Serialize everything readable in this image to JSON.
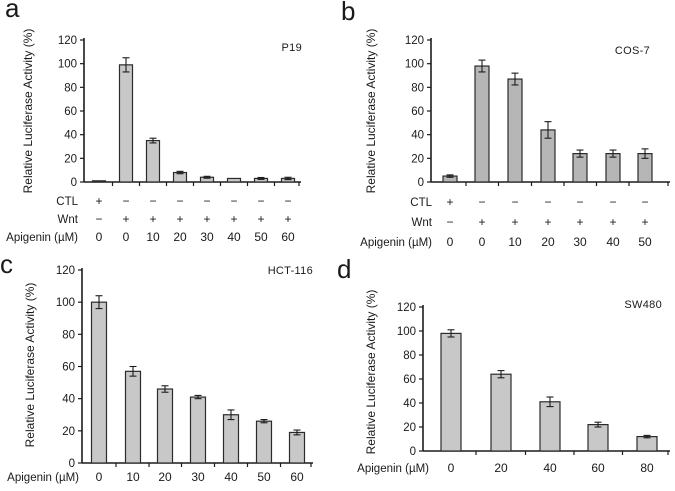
{
  "colors": {
    "bar_fill_light": "#c8c8c8",
    "bar_fill_medium": "#b6b6b6",
    "bar_border": "#2b2b2b",
    "axis": "#1c1c1c",
    "text": "#1a1a1a",
    "background": "#ffffff"
  },
  "chart_data": [
    {
      "type": "bar",
      "panel_letter": "a",
      "cell_line": "P19",
      "ylabel": "Relative Luciferase Activity (%)",
      "ylim": [
        0,
        120
      ],
      "yticks": [
        0,
        20,
        40,
        60,
        80,
        100,
        120
      ],
      "categories": [
        "0",
        "0",
        "10",
        "20",
        "30",
        "40",
        "50",
        "60"
      ],
      "values": [
        1,
        99,
        35,
        8,
        4,
        3,
        3,
        3
      ],
      "errors": [
        0.3,
        6,
        2,
        1,
        0.8,
        0.5,
        0.8,
        1
      ],
      "bar_fill": "#c8c8c8",
      "legend": "none",
      "grid": false,
      "condition_rows": [
        {
          "label": "CTL",
          "values": [
            "+",
            "−",
            "−",
            "−",
            "−",
            "−",
            "−",
            "−"
          ]
        },
        {
          "label": "Wnt",
          "values": [
            "−",
            "+",
            "+",
            "+",
            "+",
            "+",
            "+",
            "+"
          ]
        },
        {
          "label": "Apigenin (µM)",
          "values": [
            "0",
            "0",
            "10",
            "20",
            "30",
            "40",
            "50",
            "60"
          ]
        }
      ]
    },
    {
      "type": "bar",
      "panel_letter": "b",
      "cell_line": "COS-7",
      "ylabel": "Relative Luciferase Activity (%)",
      "ylim": [
        0,
        120
      ],
      "yticks": [
        0,
        20,
        40,
        60,
        80,
        100,
        120
      ],
      "categories": [
        "0",
        "0",
        "10",
        "20",
        "30",
        "40",
        "50"
      ],
      "values": [
        5,
        98,
        87,
        44,
        24,
        24,
        24
      ],
      "errors": [
        1,
        5,
        5,
        7,
        3,
        3,
        4
      ],
      "bar_fill": "#b6b6b6",
      "legend": "none",
      "grid": false,
      "condition_rows": [
        {
          "label": "CTL",
          "values": [
            "+",
            "−",
            "−",
            "−",
            "−",
            "−",
            "−"
          ]
        },
        {
          "label": "Wnt",
          "values": [
            "−",
            "+",
            "+",
            "+",
            "+",
            "+",
            "+"
          ]
        },
        {
          "label": "Apigenin (µM)",
          "values": [
            "0",
            "0",
            "10",
            "20",
            "30",
            "40",
            "50"
          ]
        }
      ]
    },
    {
      "type": "bar",
      "panel_letter": "c",
      "cell_line": "HCT-116",
      "ylabel": "Relative Luciferase Activity (%)",
      "ylim": [
        0,
        120
      ],
      "yticks": [
        0,
        20,
        40,
        60,
        80,
        100,
        120
      ],
      "categories": [
        "0",
        "10",
        "20",
        "30",
        "40",
        "50",
        "60"
      ],
      "values": [
        100,
        57,
        46,
        41,
        30,
        26,
        19
      ],
      "errors": [
        4,
        3,
        2,
        1,
        3,
        1,
        1.5
      ],
      "bar_fill": "#c8c8c8",
      "legend": "none",
      "grid": false,
      "condition_rows": [
        {
          "label": "Apigenin (µM)",
          "values": [
            "0",
            "10",
            "20",
            "30",
            "40",
            "50",
            "60"
          ]
        }
      ]
    },
    {
      "type": "bar",
      "panel_letter": "d",
      "cell_line": "SW480",
      "ylabel": "Relative Luciferase Activity (%)",
      "ylim": [
        0,
        120
      ],
      "yticks": [
        0,
        20,
        40,
        60,
        80,
        100,
        120
      ],
      "categories": [
        "0",
        "20",
        "40",
        "60",
        "80"
      ],
      "values": [
        98,
        64,
        41,
        22,
        12
      ],
      "errors": [
        3,
        3,
        4,
        2,
        1
      ],
      "bar_fill": "#c8c8c8",
      "legend": "none",
      "grid": false,
      "condition_rows": [
        {
          "label": "Apigenin (µM)",
          "values": [
            "0",
            "20",
            "40",
            "60",
            "80"
          ]
        }
      ]
    }
  ]
}
